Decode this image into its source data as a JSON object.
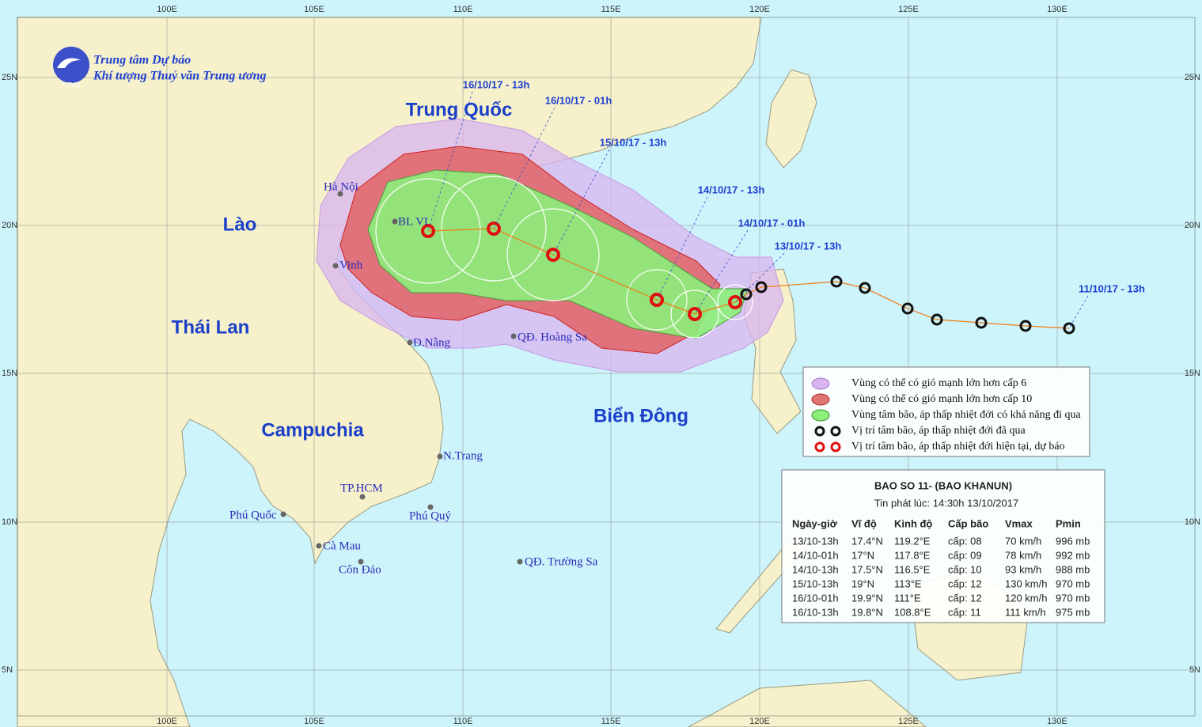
{
  "header": {
    "title": "Trung tâm Dự báo",
    "subtitle": "Khí tượng Thuỷ văn Trung ương",
    "logo_text": "KTVN"
  },
  "axes": {
    "lon_labels": [
      "100E",
      "105E",
      "110E",
      "115E",
      "120E",
      "125E",
      "130E"
    ],
    "lat_labels": [
      "25N",
      "20N",
      "15N",
      "10N",
      "5N"
    ]
  },
  "countries": [
    "Trung Quốc",
    "Lào",
    "Thái Lan",
    "Campuchia",
    "Biển Đông"
  ],
  "places": [
    "Hà Nội",
    "BL VI",
    "Vinh",
    "Đ.Nẵng",
    "QĐ. Hoàng Sa",
    "N.Trang",
    "TP.HCM",
    "Phú Quốc",
    "Phú Quý",
    "Cà Mau",
    "Côn Đảo",
    "QĐ. Trường Sa"
  ],
  "timestamps": [
    "16/10/17 - 13h",
    "16/10/17 - 01h",
    "15/10/17 - 13h",
    "14/10/17 - 13h",
    "14/10/17 - 01h",
    "13/10/17 - 13h",
    "11/10/17 - 13h"
  ],
  "legend": [
    "Vùng có thể có gió mạnh lớn hơn cấp 6",
    "Vùng có thể có gió mạnh lớn hơn cấp 10",
    "Vùng tâm bão, áp thấp nhiệt đới có khả năng đi qua",
    "Vị trí tâm bão, áp thấp nhiệt đới đã qua",
    "Vị trí tâm bão, áp thấp nhiệt đới hiện tại, dự báo"
  ],
  "info": {
    "title": "BAO SO 11- (BAO KHANUN)",
    "issued": "Tin phát lúc: 14:30h 13/10/2017",
    "columns": [
      "Ngày-giờ",
      "Vĩ độ",
      "Kinh độ",
      "Cấp bão",
      "Vmax",
      "Pmin"
    ],
    "rows": [
      [
        "13/10-13h",
        "17.4°N",
        "119.2°E",
        "cấp: 08",
        "70 km/h",
        "996 mb"
      ],
      [
        "14/10-01h",
        "17°N",
        "117.8°E",
        "cấp: 09",
        "78 km/h",
        "992 mb"
      ],
      [
        "14/10-13h",
        "17.5°N",
        "116.5°E",
        "cấp: 10",
        "93 km/h",
        "988 mb"
      ],
      [
        "15/10-13h",
        "19°N",
        "113°E",
        "cấp: 12",
        "130 km/h",
        "970 mb"
      ],
      [
        "16/10-01h",
        "19.9°N",
        "111°E",
        "cấp: 12",
        "120 km/h",
        "970 mb"
      ],
      [
        "16/10-13h",
        "19.8°N",
        "108.8°E",
        "cấp: 11",
        "111 km/h",
        "975 mb"
      ]
    ]
  }
}
